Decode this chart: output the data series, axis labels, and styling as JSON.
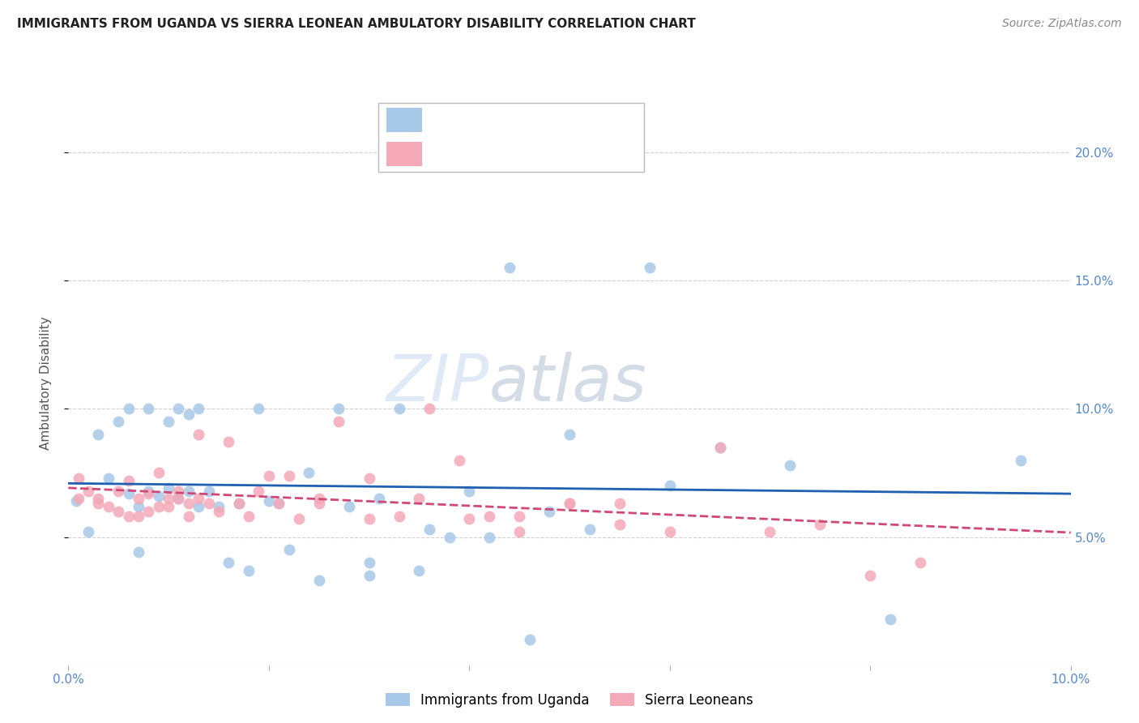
{
  "title": "IMMIGRANTS FROM UGANDA VS SIERRA LEONEAN AMBULATORY DISABILITY CORRELATION CHART",
  "source": "Source: ZipAtlas.com",
  "ylabel": "Ambulatory Disability",
  "xlim": [
    0.0,
    0.1
  ],
  "ylim": [
    0.0,
    0.22
  ],
  "yticks": [
    0.05,
    0.1,
    0.15,
    0.2
  ],
  "ytick_labels": [
    "5.0%",
    "10.0%",
    "15.0%",
    "20.0%"
  ],
  "xticks": [
    0.0,
    0.02,
    0.04,
    0.06,
    0.08,
    0.1
  ],
  "xtick_labels": [
    "0.0%",
    "",
    "",
    "",
    "",
    "10.0%"
  ],
  "blue_color": "#a8c8e8",
  "pink_color": "#f4a8b8",
  "line_blue": "#2060b0",
  "line_pink": "#d04878",
  "watermark_zip": "ZIP",
  "watermark_atlas": "atlas",
  "uganda_x": [
    0.0008,
    0.002,
    0.003,
    0.004,
    0.005,
    0.006,
    0.006,
    0.007,
    0.007,
    0.008,
    0.008,
    0.009,
    0.01,
    0.01,
    0.011,
    0.011,
    0.012,
    0.012,
    0.013,
    0.013,
    0.014,
    0.015,
    0.016,
    0.017,
    0.018,
    0.019,
    0.02,
    0.021,
    0.022,
    0.024,
    0.025,
    0.027,
    0.028,
    0.03,
    0.031,
    0.033,
    0.036,
    0.038,
    0.04,
    0.042,
    0.044,
    0.046,
    0.05,
    0.052,
    0.058,
    0.06,
    0.065,
    0.072,
    0.082,
    0.095,
    0.03,
    0.035,
    0.048
  ],
  "uganda_y": [
    0.064,
    0.052,
    0.09,
    0.073,
    0.095,
    0.067,
    0.1,
    0.062,
    0.044,
    0.1,
    0.068,
    0.066,
    0.095,
    0.069,
    0.1,
    0.065,
    0.068,
    0.098,
    0.062,
    0.1,
    0.068,
    0.062,
    0.04,
    0.063,
    0.037,
    0.1,
    0.064,
    0.063,
    0.045,
    0.075,
    0.033,
    0.1,
    0.062,
    0.04,
    0.065,
    0.1,
    0.053,
    0.05,
    0.068,
    0.05,
    0.155,
    0.01,
    0.09,
    0.053,
    0.155,
    0.07,
    0.085,
    0.078,
    0.018,
    0.08,
    0.035,
    0.037,
    0.06
  ],
  "sierra_x": [
    0.001,
    0.001,
    0.002,
    0.003,
    0.003,
    0.004,
    0.005,
    0.005,
    0.006,
    0.006,
    0.007,
    0.007,
    0.008,
    0.008,
    0.009,
    0.009,
    0.01,
    0.01,
    0.011,
    0.011,
    0.012,
    0.012,
    0.013,
    0.013,
    0.014,
    0.015,
    0.016,
    0.017,
    0.018,
    0.019,
    0.02,
    0.021,
    0.022,
    0.023,
    0.025,
    0.027,
    0.03,
    0.033,
    0.036,
    0.039,
    0.042,
    0.045,
    0.05,
    0.055,
    0.06,
    0.065,
    0.07,
    0.075,
    0.08,
    0.085,
    0.025,
    0.03,
    0.035,
    0.04,
    0.045,
    0.05,
    0.055
  ],
  "sierra_y": [
    0.073,
    0.065,
    0.068,
    0.065,
    0.063,
    0.062,
    0.068,
    0.06,
    0.058,
    0.072,
    0.065,
    0.058,
    0.06,
    0.067,
    0.062,
    0.075,
    0.065,
    0.062,
    0.065,
    0.068,
    0.063,
    0.058,
    0.09,
    0.065,
    0.063,
    0.06,
    0.087,
    0.063,
    0.058,
    0.068,
    0.074,
    0.063,
    0.074,
    0.057,
    0.065,
    0.095,
    0.073,
    0.058,
    0.1,
    0.08,
    0.058,
    0.058,
    0.063,
    0.063,
    0.052,
    0.085,
    0.052,
    0.055,
    0.035,
    0.04,
    0.063,
    0.057,
    0.065,
    0.057,
    0.052,
    0.063,
    0.055
  ]
}
